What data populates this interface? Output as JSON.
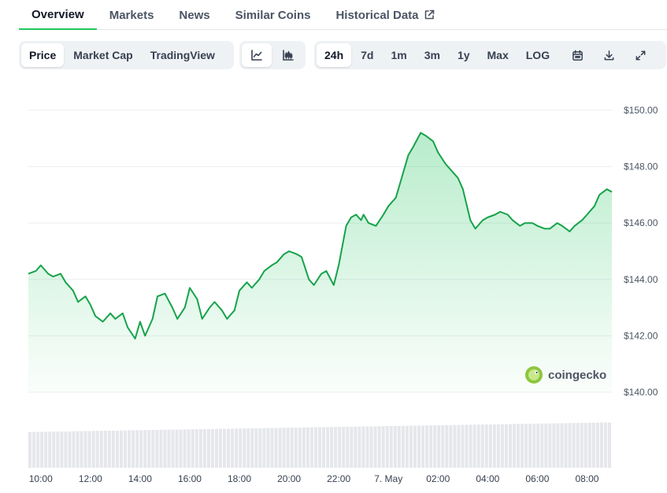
{
  "tabs": [
    {
      "label": "Overview"
    },
    {
      "label": "Markets"
    },
    {
      "label": "News"
    },
    {
      "label": "Similar Coins"
    },
    {
      "label": "Historical Data",
      "icon": "external-link-icon"
    }
  ],
  "toolbar": {
    "metric_buttons": [
      "Price",
      "Market Cap",
      "TradingView"
    ],
    "active_metric": "Price",
    "chart_type_icons": [
      "line-chart-icon",
      "candlestick-chart-icon"
    ],
    "range_buttons": [
      "24h",
      "7d",
      "1m",
      "3m",
      "1y",
      "Max",
      "LOG"
    ],
    "active_range": "24h",
    "action_icons": [
      "calendar-icon",
      "download-icon",
      "fullscreen-icon"
    ]
  },
  "watermark": "coingecko",
  "colors": {
    "line": "#16a34a",
    "accent": "#22c55e",
    "volume": "#e5e7eb"
  },
  "chart_data": {
    "type": "area",
    "y_ticks": [
      "$150.00",
      "$148.00",
      "$146.00",
      "$144.00",
      "$142.00",
      "$140.00"
    ],
    "ylim": [
      140,
      150
    ],
    "x_ticks": [
      "10:00",
      "12:00",
      "14:00",
      "16:00",
      "18:00",
      "20:00",
      "22:00",
      "7. May",
      "02:00",
      "04:00",
      "06:00",
      "08:00"
    ],
    "x_range_hours": [
      9.5,
      33.0
    ],
    "grid": true,
    "series": [
      {
        "x": [
          9.5,
          9.8,
          10.0,
          10.3,
          10.5,
          10.8,
          11.0,
          11.3,
          11.5,
          11.8,
          12.0,
          12.2,
          12.5,
          12.8,
          13.0,
          13.3,
          13.5,
          13.8,
          14.0,
          14.2,
          14.5,
          14.7,
          15.0,
          15.3,
          15.5,
          15.8,
          16.0,
          16.3,
          16.5,
          16.8,
          17.0,
          17.3,
          17.5,
          17.8,
          18.0,
          18.3,
          18.5,
          18.8,
          19.0,
          19.3,
          19.5,
          19.8,
          20.0,
          20.3,
          20.5,
          20.8,
          21.0,
          21.3,
          21.5,
          21.8,
          22.0,
          22.3,
          22.5,
          22.7,
          22.9,
          23.0,
          23.2,
          23.5,
          23.8,
          24.0,
          24.3,
          24.5,
          24.8,
          25.0,
          25.3,
          25.5,
          25.8,
          26.0,
          26.3,
          26.5,
          26.8,
          27.0,
          27.3,
          27.5,
          27.8,
          28.0,
          28.3,
          28.5,
          28.8,
          29.0,
          29.3,
          29.5,
          29.8,
          30.0,
          30.3,
          30.5,
          30.8,
          31.0,
          31.3,
          31.5,
          31.8,
          32.0,
          32.3,
          32.5,
          32.8,
          33.0
        ],
        "y": [
          144.2,
          144.3,
          144.5,
          144.2,
          144.1,
          144.2,
          143.9,
          143.6,
          143.2,
          143.4,
          143.1,
          142.7,
          142.5,
          142.8,
          142.6,
          142.8,
          142.3,
          141.9,
          142.5,
          142.0,
          142.6,
          143.4,
          143.5,
          143.0,
          142.6,
          143.0,
          143.7,
          143.3,
          142.6,
          143.0,
          143.2,
          142.9,
          142.6,
          142.9,
          143.6,
          143.9,
          143.7,
          144.0,
          144.3,
          144.5,
          144.6,
          144.9,
          145.0,
          144.9,
          144.8,
          144.0,
          143.8,
          144.2,
          144.3,
          143.8,
          144.5,
          145.9,
          146.2,
          146.3,
          146.1,
          146.3,
          146.0,
          145.9,
          146.3,
          146.6,
          146.9,
          147.5,
          148.4,
          148.7,
          149.2,
          149.1,
          148.9,
          148.5,
          148.1,
          147.9,
          147.6,
          147.2,
          146.1,
          145.8,
          146.1,
          146.2,
          146.3,
          146.4,
          146.3,
          146.1,
          145.9,
          146.0,
          146.0,
          145.9,
          145.8,
          145.8,
          146.0,
          145.9,
          145.7,
          145.9,
          146.1,
          146.3,
          146.6,
          147.0,
          147.2,
          147.1
        ]
      }
    ]
  }
}
